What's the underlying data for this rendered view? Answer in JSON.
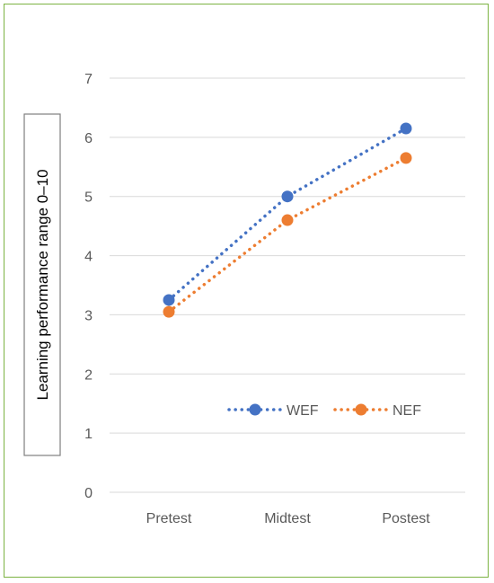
{
  "chart_data": {
    "type": "line",
    "categories": [
      "Pretest",
      "Midtest",
      "Postest"
    ],
    "series": [
      {
        "name": "WEF",
        "values": [
          3.25,
          5.0,
          6.15
        ],
        "color": "#4472c4"
      },
      {
        "name": "NEF",
        "values": [
          3.05,
          4.6,
          5.65
        ],
        "color": "#ed7d31"
      }
    ],
    "ylabel": "Learning performance range 0–10",
    "ylim": [
      0,
      7
    ],
    "yticks": [
      0,
      1,
      2,
      3,
      4,
      5,
      6,
      7
    ],
    "grid": true,
    "line_style": "dotted",
    "legend_position": "lower-right-inside"
  }
}
